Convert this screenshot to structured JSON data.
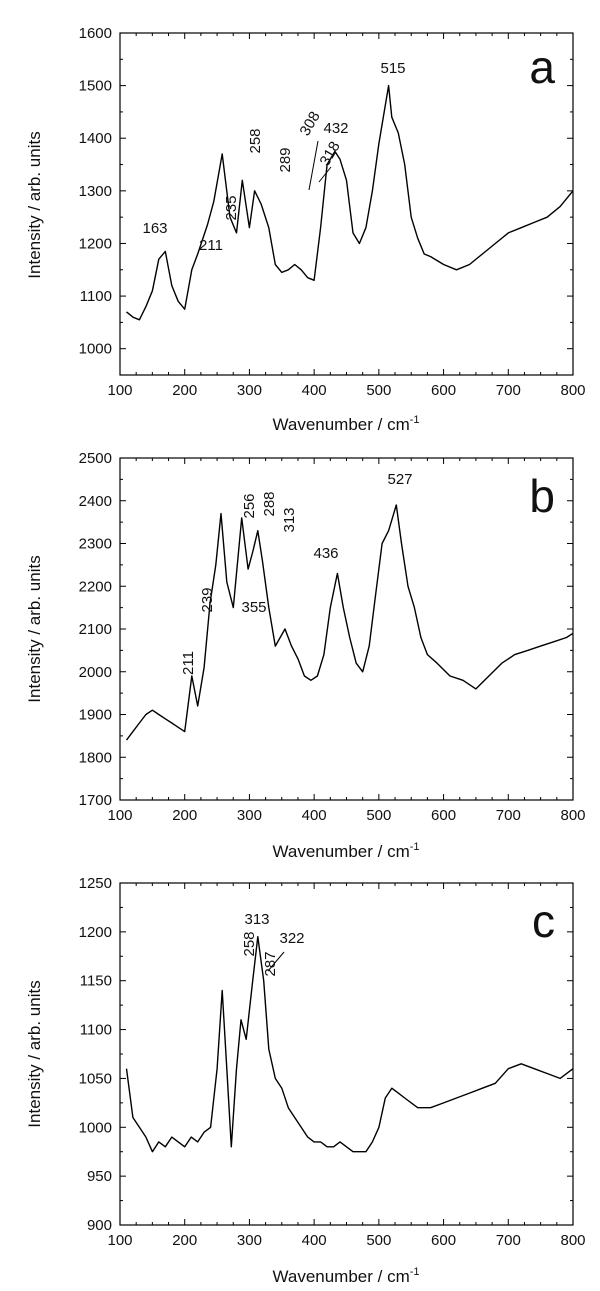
{
  "chart_data": [
    {
      "type": "line",
      "panel_label": "a",
      "xlabel": "Wavenumber / cm",
      "xlabel_sup": "-1",
      "ylabel": "Intensity / arb. units",
      "xlim": [
        100,
        800
      ],
      "ylim": [
        950,
        1600
      ],
      "xticks": [
        100,
        200,
        300,
        400,
        500,
        600,
        700,
        800
      ],
      "yticks": [
        1000,
        1100,
        1200,
        1300,
        1400,
        1500,
        1600
      ],
      "grid": false,
      "series": [
        {
          "x": [
            110,
            120,
            130,
            140,
            150,
            160,
            170,
            180,
            190,
            200,
            211,
            220,
            235,
            245,
            258,
            270,
            280,
            289,
            300,
            308,
            318,
            330,
            340,
            350,
            360,
            370,
            380,
            390,
            400,
            410,
            420,
            432,
            440,
            450,
            460,
            470,
            480,
            490,
            500,
            515,
            520,
            530,
            540,
            550,
            560,
            570,
            580,
            600,
            620,
            640,
            660,
            680,
            700,
            720,
            740,
            760,
            780,
            800
          ],
          "y": [
            1070,
            1060,
            1055,
            1080,
            1110,
            1170,
            1185,
            1120,
            1090,
            1075,
            1150,
            1180,
            1235,
            1280,
            1370,
            1250,
            1220,
            1320,
            1230,
            1300,
            1275,
            1230,
            1160,
            1145,
            1150,
            1160,
            1150,
            1135,
            1130,
            1230,
            1350,
            1375,
            1360,
            1320,
            1220,
            1200,
            1230,
            1300,
            1390,
            1500,
            1440,
            1410,
            1350,
            1250,
            1210,
            1180,
            1175,
            1160,
            1150,
            1160,
            1180,
            1200,
            1220,
            1230,
            1240,
            1250,
            1270,
            1300
          ]
        }
      ],
      "annotations": [
        "163",
        "211",
        "235",
        "258",
        "289",
        "308",
        "318",
        "432",
        "515"
      ]
    },
    {
      "type": "line",
      "panel_label": "b",
      "xlabel": "Wavenumber / cm",
      "xlabel_sup": "-1",
      "ylabel": "Intensity / arb. units",
      "xlim": [
        100,
        800
      ],
      "ylim": [
        1700,
        2500
      ],
      "xticks": [
        100,
        200,
        300,
        400,
        500,
        600,
        700,
        800
      ],
      "yticks": [
        1700,
        1800,
        1900,
        2000,
        2100,
        2200,
        2300,
        2400,
        2500
      ],
      "grid": false,
      "series": [
        {
          "x": [
            110,
            120,
            130,
            140,
            150,
            160,
            170,
            180,
            190,
            200,
            211,
            220,
            230,
            239,
            248,
            256,
            265,
            275,
            288,
            298,
            305,
            313,
            320,
            330,
            340,
            355,
            365,
            375,
            385,
            395,
            405,
            415,
            425,
            436,
            445,
            455,
            465,
            475,
            485,
            495,
            505,
            515,
            527,
            535,
            545,
            555,
            565,
            575,
            590,
            610,
            630,
            650,
            670,
            690,
            710,
            730,
            750,
            770,
            790,
            800
          ],
          "y": [
            1840,
            1860,
            1880,
            1900,
            1910,
            1900,
            1890,
            1880,
            1870,
            1860,
            1990,
            1920,
            2010,
            2160,
            2250,
            2370,
            2210,
            2150,
            2360,
            2240,
            2280,
            2330,
            2260,
            2150,
            2060,
            2100,
            2060,
            2030,
            1990,
            1980,
            1990,
            2040,
            2150,
            2230,
            2150,
            2080,
            2020,
            2000,
            2060,
            2180,
            2300,
            2330,
            2390,
            2300,
            2200,
            2150,
            2080,
            2040,
            2020,
            1990,
            1980,
            1960,
            1990,
            2020,
            2040,
            2050,
            2060,
            2070,
            2080,
            2090
          ]
        }
      ],
      "annotations": [
        "211",
        "239",
        "256",
        "288",
        "313",
        "355",
        "436",
        "527"
      ]
    },
    {
      "type": "line",
      "panel_label": "c",
      "xlabel": "Wavenumber / cm",
      "xlabel_sup": "-1",
      "ylabel": "Intensity / arb. units",
      "xlim": [
        100,
        800
      ],
      "ylim": [
        900,
        1250
      ],
      "xticks": [
        100,
        200,
        300,
        400,
        500,
        600,
        700,
        800
      ],
      "yticks": [
        900,
        950,
        1000,
        1050,
        1100,
        1150,
        1200,
        1250
      ],
      "grid": false,
      "series": [
        {
          "x": [
            110,
            120,
            130,
            140,
            150,
            160,
            170,
            180,
            190,
            200,
            210,
            220,
            230,
            240,
            250,
            258,
            265,
            272,
            280,
            287,
            295,
            305,
            313,
            322,
            330,
            340,
            350,
            360,
            370,
            380,
            390,
            400,
            410,
            420,
            430,
            440,
            450,
            460,
            470,
            480,
            490,
            500,
            510,
            520,
            530,
            540,
            560,
            580,
            600,
            620,
            640,
            660,
            680,
            700,
            720,
            740,
            760,
            780,
            800
          ],
          "y": [
            1060,
            1010,
            1000,
            990,
            975,
            985,
            980,
            990,
            985,
            980,
            990,
            985,
            995,
            1000,
            1060,
            1140,
            1060,
            980,
            1060,
            1110,
            1090,
            1150,
            1195,
            1150,
            1080,
            1050,
            1040,
            1020,
            1010,
            1000,
            990,
            985,
            985,
            980,
            980,
            985,
            980,
            975,
            975,
            975,
            985,
            1000,
            1030,
            1040,
            1035,
            1030,
            1020,
            1020,
            1025,
            1030,
            1035,
            1040,
            1045,
            1060,
            1065,
            1060,
            1055,
            1050,
            1060
          ]
        }
      ],
      "annotations": [
        "258",
        "287",
        "313",
        "322"
      ]
    }
  ]
}
